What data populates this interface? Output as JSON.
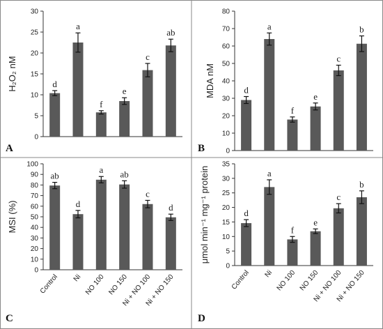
{
  "categories": [
    "Control",
    "Ni",
    "NO 100",
    "NO 150",
    "Ni + NO 100",
    "Ni + NO 150"
  ],
  "chart_data": [
    {
      "type": "bar",
      "panel": "A",
      "ylabel": "H₂O₂ nM",
      "ylim": [
        0,
        30
      ],
      "yticks": [
        0,
        5,
        10,
        15,
        20,
        25,
        30
      ],
      "categories": [
        "Control",
        "Ni",
        "NO 100",
        "NO 150",
        "Ni + NO 100",
        "Ni + NO 150"
      ],
      "values": [
        10.4,
        22.5,
        5.8,
        8.5,
        15.9,
        21.8
      ],
      "errors": [
        0.6,
        2.3,
        0.4,
        0.8,
        1.6,
        1.5
      ],
      "labels": [
        "d",
        "a",
        "f",
        "e",
        "c",
        "ab"
      ],
      "bar_color": "#595959",
      "show_xticks": false,
      "grid": false
    },
    {
      "type": "bar",
      "panel": "B",
      "ylabel": "MDA nM",
      "ylim": [
        0,
        80
      ],
      "yticks": [
        0,
        10,
        20,
        30,
        40,
        50,
        60,
        70,
        80
      ],
      "categories": [
        "Control",
        "Ni",
        "NO 100",
        "NO 150",
        "Ni + NO 100",
        "Ni + NO 150"
      ],
      "values": [
        29.0,
        64.0,
        17.8,
        25.3,
        46.0,
        61.3
      ],
      "errors": [
        2.0,
        3.5,
        1.5,
        2.0,
        3.0,
        4.5
      ],
      "labels": [
        "d",
        "a",
        "f",
        "e",
        "c",
        "b"
      ],
      "bar_color": "#595959",
      "show_xticks": false,
      "grid": false
    },
    {
      "type": "bar",
      "panel": "C",
      "ylabel": "MSI (%)",
      "ylim": [
        0,
        100
      ],
      "yticks": [
        0,
        10,
        20,
        30,
        40,
        50,
        60,
        70,
        80,
        90,
        100
      ],
      "categories": [
        "Control",
        "Ni",
        "NO 100",
        "NO 150",
        "Ni + NO 100",
        "Ni + NO 150"
      ],
      "values": [
        79.5,
        52.5,
        85.0,
        80.5,
        62.0,
        49.5
      ],
      "errors": [
        3.0,
        3.5,
        3.0,
        3.5,
        3.5,
        3.0
      ],
      "labels": [
        "ab",
        "d",
        "a",
        "ab",
        "c",
        "d"
      ],
      "bar_color": "#595959",
      "show_xticks": true,
      "grid": false
    },
    {
      "type": "bar",
      "panel": "D",
      "ylabel": "μmol min⁻¹ mg⁻¹ protein",
      "ylim": [
        0,
        35
      ],
      "yticks": [
        0,
        5,
        10,
        15,
        20,
        25,
        30,
        35
      ],
      "categories": [
        "Control",
        "Ni",
        "NO 100",
        "NO 150",
        "Ni + NO 100",
        "Ni + NO 150"
      ],
      "values": [
        14.6,
        27.0,
        9.0,
        11.8,
        19.7,
        23.5
      ],
      "errors": [
        1.2,
        2.5,
        1.0,
        0.8,
        1.6,
        2.2
      ],
      "labels": [
        "d",
        "a",
        "f",
        "e",
        "c",
        "b"
      ],
      "bar_color": "#595959",
      "show_xticks": true,
      "grid": false
    }
  ]
}
